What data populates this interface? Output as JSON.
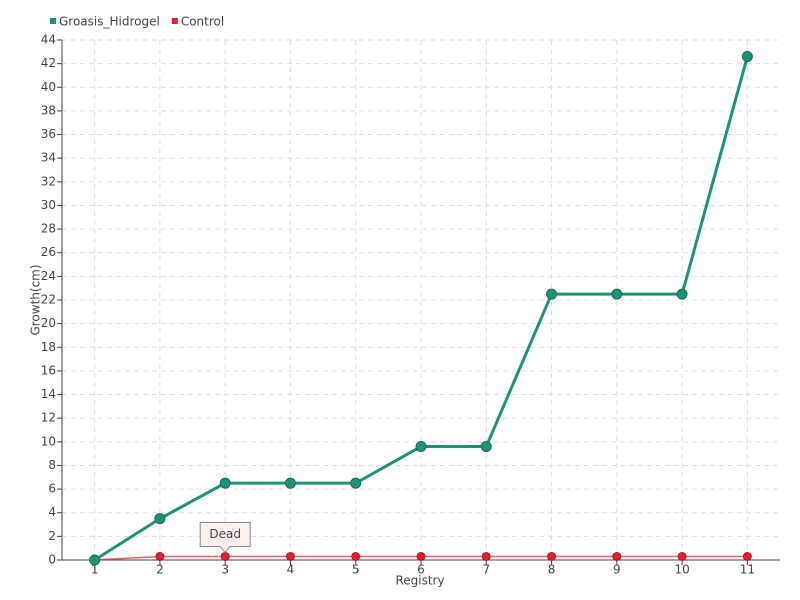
{
  "chart_data": {
    "type": "line",
    "x_label": "Registry",
    "y_label": "Growth(cm)",
    "categories": [
      "1",
      "2",
      "3",
      "4",
      "5",
      "6",
      "7",
      "8",
      "9",
      "10",
      "11"
    ],
    "series": [
      {
        "name": "Groasis_Hidrogel",
        "color": "#1e9278",
        "values": [
          0,
          3.5,
          6.5,
          6.5,
          6.5,
          9.6,
          9.6,
          22.5,
          22.5,
          22.5,
          42.6
        ]
      },
      {
        "name": "Control",
        "color": "#e0202e",
        "values": [
          0,
          0.3,
          0.3,
          0.3,
          0.3,
          0.3,
          0.3,
          0.3,
          0.3,
          0.3,
          0.3
        ]
      }
    ],
    "annotations": [
      {
        "text": "Dead",
        "x": "3"
      }
    ],
    "ylim": [
      0,
      44
    ],
    "yticks": [
      0,
      2,
      4,
      6,
      8,
      10,
      12,
      14,
      16,
      18,
      20,
      22,
      24,
      26,
      28,
      30,
      32,
      34,
      36,
      38,
      40,
      42,
      44
    ],
    "grid": true,
    "legend": "top-left"
  }
}
